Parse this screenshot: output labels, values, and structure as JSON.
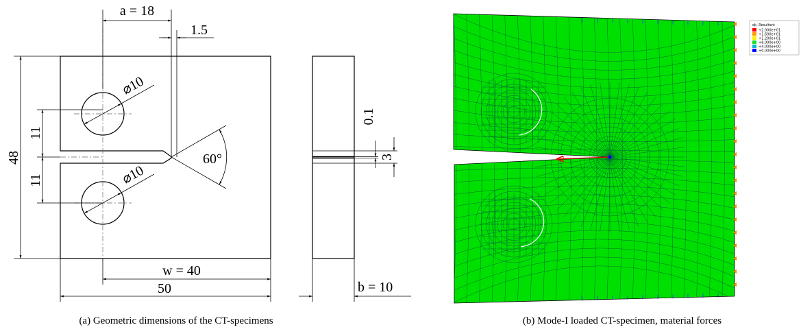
{
  "figure_a": {
    "dimensions": {
      "a": "a = 18",
      "notch_width": "1.5",
      "height": "48",
      "upper_offset": "11",
      "lower_offset": "11",
      "upper_hole": "⌀10",
      "lower_hole": "⌀10",
      "notch_angle": "60°",
      "crack_width": "0.1",
      "crack_band": "3",
      "w": "w = 40",
      "width": "50",
      "b": "b = 10"
    },
    "caption": "(a) Geometric dimensions of the CT-specimens"
  },
  "figure_b": {
    "legend": {
      "title": "qk, Resultant",
      "entries": [
        {
          "label": "+2.000e+01",
          "color": "#ff0000"
        },
        {
          "label": "+1.600e+01",
          "color": "#ff9900"
        },
        {
          "label": "+1.200e+01",
          "color": "#ffee00"
        },
        {
          "label": "+8.000e+00",
          "color": "#22dd22"
        },
        {
          "label": "+4.000e+00",
          "color": "#00bbcc"
        },
        {
          "label": "+0.000e+00",
          "color": "#0000ff"
        }
      ]
    },
    "caption": "(b) Mode-I loaded CT-specimen, material forces"
  }
}
